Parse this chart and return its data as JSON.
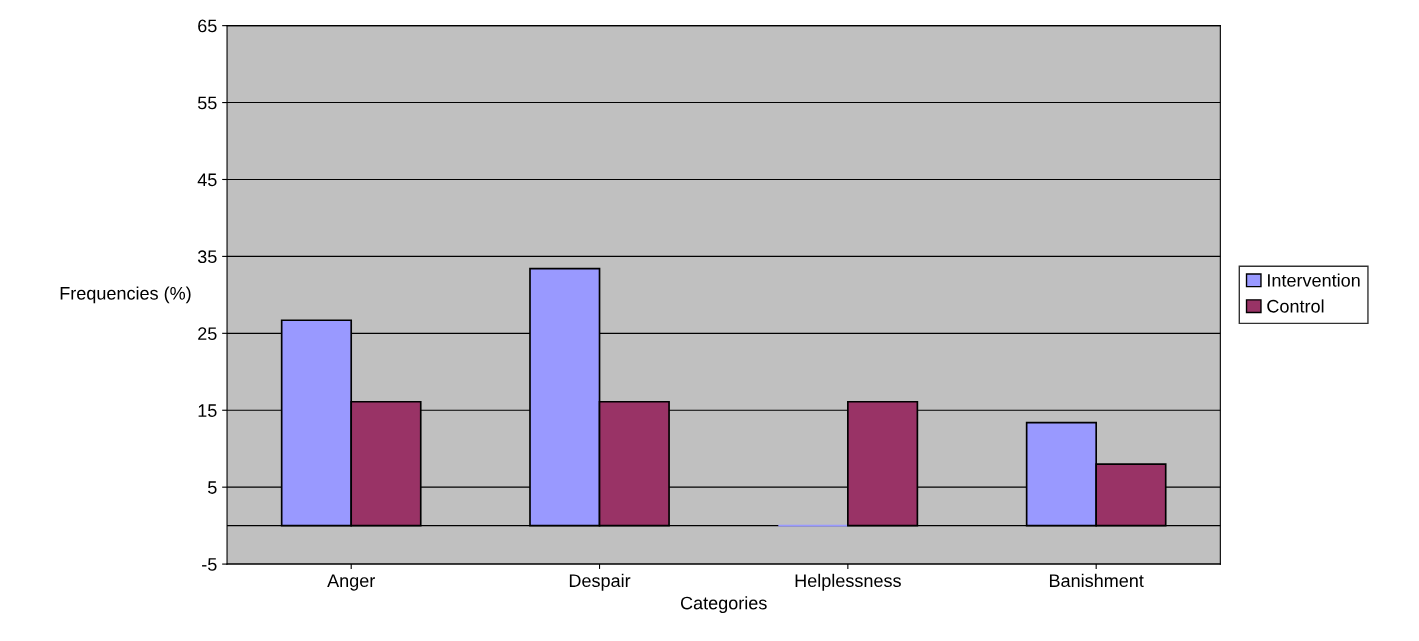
{
  "chart_data": {
    "type": "bar",
    "xlabel": "Categories",
    "ylabel": "Frequencies (%)",
    "categories": [
      "Anger",
      "Despair",
      "Helplessness",
      "Banishment"
    ],
    "series": [
      {
        "name": "Intervention",
        "color": "#9999ff",
        "values": [
          26.7,
          33.4,
          0,
          13.4
        ]
      },
      {
        "name": "Control",
        "color": "#993366",
        "values": [
          16.1,
          16.1,
          16.1,
          8
        ]
      }
    ],
    "ylim": [
      -5,
      65
    ],
    "yticks": [
      -5,
      5,
      15,
      25,
      35,
      45,
      55,
      65
    ],
    "grid": "y",
    "legend": "right"
  }
}
